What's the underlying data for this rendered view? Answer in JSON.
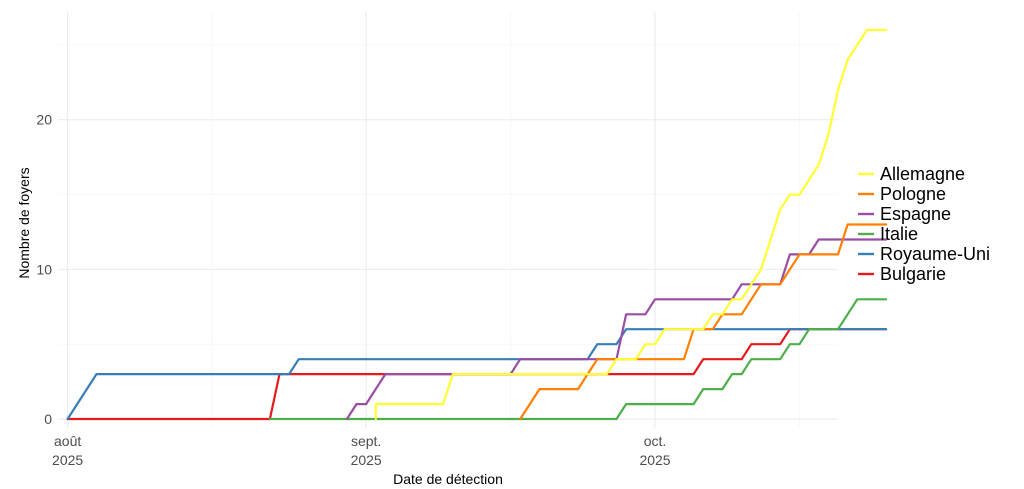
{
  "chart_data": {
    "type": "line",
    "step": true,
    "xlabel": "Date de détection",
    "ylabel": "Nombre de foyers",
    "xlim": [
      "2025-07-31",
      "2025-10-20"
    ],
    "ylim": [
      -0.6,
      27.2
    ],
    "x_ticks": [
      {
        "date": "2025-08-01",
        "line1": "août",
        "line2": "2025"
      },
      {
        "date": "2025-09-01",
        "line1": "sept.",
        "line2": "2025"
      },
      {
        "date": "2025-10-01",
        "line1": "oct.",
        "line2": "2025"
      }
    ],
    "x_minor_ticks": [
      "2025-08-16",
      "2025-09-16",
      "2025-10-16"
    ],
    "y_ticks": [
      0,
      10,
      20
    ],
    "y_minor_ticks": [
      5,
      15,
      25
    ],
    "legend": {
      "position": "right"
    },
    "grid": true,
    "series": [
      {
        "name": "Allemagne",
        "color": "#ffff33",
        "points": [
          [
            "2025-09-02",
            0
          ],
          [
            "2025-09-02",
            1
          ],
          [
            "2025-09-09",
            1
          ],
          [
            "2025-09-10",
            3
          ],
          [
            "2025-09-26",
            3
          ],
          [
            "2025-09-27",
            4
          ],
          [
            "2025-09-29",
            4
          ],
          [
            "2025-09-30",
            5
          ],
          [
            "2025-10-01",
            5
          ],
          [
            "2025-10-02",
            6
          ],
          [
            "2025-10-06",
            6
          ],
          [
            "2025-10-07",
            7
          ],
          [
            "2025-10-08",
            7
          ],
          [
            "2025-10-09",
            8
          ],
          [
            "2025-10-10",
            8
          ],
          [
            "2025-10-11",
            9
          ],
          [
            "2025-10-12",
            10
          ],
          [
            "2025-10-13",
            12
          ],
          [
            "2025-10-14",
            14
          ],
          [
            "2025-10-15",
            15
          ],
          [
            "2025-10-16",
            15
          ],
          [
            "2025-10-18",
            17
          ],
          [
            "2025-10-19",
            19
          ],
          [
            "2025-10-20",
            22
          ],
          [
            "2025-10-21",
            24
          ],
          [
            "2025-10-23",
            26
          ],
          [
            "2025-10-25",
            26
          ]
        ]
      },
      {
        "name": "Pologne",
        "color": "#ff7f00",
        "points": [
          [
            "2025-09-17",
            0
          ],
          [
            "2025-09-19",
            2
          ],
          [
            "2025-09-23",
            2
          ],
          [
            "2025-09-25",
            4
          ],
          [
            "2025-10-04",
            4
          ],
          [
            "2025-10-05",
            6
          ],
          [
            "2025-10-07",
            6
          ],
          [
            "2025-10-08",
            7
          ],
          [
            "2025-10-10",
            7
          ],
          [
            "2025-10-12",
            9
          ],
          [
            "2025-10-14",
            9
          ],
          [
            "2025-10-16",
            11
          ],
          [
            "2025-10-20",
            11
          ],
          [
            "2025-10-21",
            13
          ],
          [
            "2025-10-25",
            13
          ]
        ]
      },
      {
        "name": "Espagne",
        "color": "#984ea3",
        "points": [
          [
            "2025-08-30",
            0
          ],
          [
            "2025-08-31",
            1
          ],
          [
            "2025-09-01",
            1
          ],
          [
            "2025-09-03",
            3
          ],
          [
            "2025-09-16",
            3
          ],
          [
            "2025-09-17",
            4
          ],
          [
            "2025-09-27",
            4
          ],
          [
            "2025-09-28",
            7
          ],
          [
            "2025-09-30",
            7
          ],
          [
            "2025-10-01",
            8
          ],
          [
            "2025-10-09",
            8
          ],
          [
            "2025-10-10",
            9
          ],
          [
            "2025-10-14",
            9
          ],
          [
            "2025-10-15",
            11
          ],
          [
            "2025-10-17",
            11
          ],
          [
            "2025-10-18",
            12
          ],
          [
            "2025-10-25",
            12
          ]
        ]
      },
      {
        "name": "Italie",
        "color": "#4daf4a",
        "points": [
          [
            "2025-08-22",
            0
          ],
          [
            "2025-09-27",
            0
          ],
          [
            "2025-09-28",
            1
          ],
          [
            "2025-10-05",
            1
          ],
          [
            "2025-10-06",
            2
          ],
          [
            "2025-10-08",
            2
          ],
          [
            "2025-10-09",
            3
          ],
          [
            "2025-10-10",
            3
          ],
          [
            "2025-10-11",
            4
          ],
          [
            "2025-10-14",
            4
          ],
          [
            "2025-10-15",
            5
          ],
          [
            "2025-10-16",
            5
          ],
          [
            "2025-10-17",
            6
          ],
          [
            "2025-10-20",
            6
          ],
          [
            "2025-10-21",
            7
          ],
          [
            "2025-10-22",
            8
          ],
          [
            "2025-10-25",
            8
          ]
        ]
      },
      {
        "name": "Royaume-Uni",
        "color": "#377eb8",
        "points": [
          [
            "2025-08-01",
            0
          ],
          [
            "2025-08-04",
            3
          ],
          [
            "2025-08-24",
            3
          ],
          [
            "2025-08-25",
            4
          ],
          [
            "2025-09-24",
            4
          ],
          [
            "2025-09-25",
            5
          ],
          [
            "2025-09-27",
            5
          ],
          [
            "2025-09-28",
            6
          ],
          [
            "2025-10-15",
            6
          ],
          [
            "2025-10-25",
            6
          ]
        ]
      },
      {
        "name": "Bulgarie",
        "color": "#e41a1c",
        "points": [
          [
            "2025-08-01",
            0
          ],
          [
            "2025-08-22",
            0
          ],
          [
            "2025-08-23",
            3
          ],
          [
            "2025-10-05",
            3
          ],
          [
            "2025-10-06",
            4
          ],
          [
            "2025-10-10",
            4
          ],
          [
            "2025-10-11",
            5
          ],
          [
            "2025-10-14",
            5
          ],
          [
            "2025-10-15",
            6
          ],
          [
            "2025-10-25",
            6
          ]
        ]
      }
    ]
  }
}
